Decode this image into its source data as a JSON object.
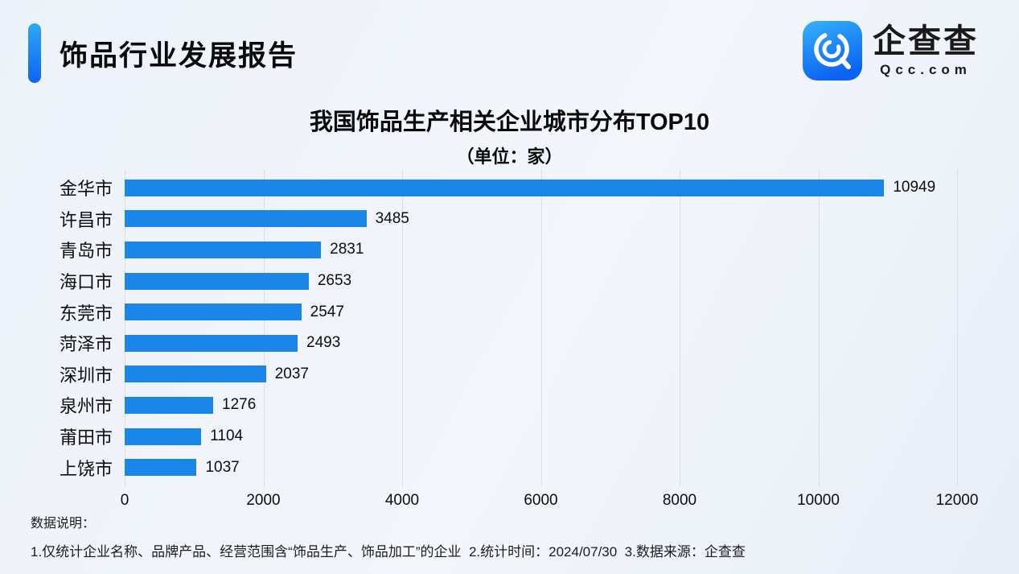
{
  "header": {
    "title": "饰品行业发展报告",
    "brand": {
      "name": "企查查",
      "domain": "Qcc.com",
      "icon": "qcc-magnifier-icon"
    }
  },
  "chart": {
    "title": "我国饰品生产相关企业城市分布TOP10",
    "subtitle": "（单位：家）"
  },
  "chart_data": {
    "type": "bar",
    "orientation": "horizontal",
    "title": "我国饰品生产相关企业城市分布TOP10",
    "subtitle": "（单位：家）",
    "unit": "家",
    "categories": [
      "金华市",
      "许昌市",
      "青岛市",
      "海口市",
      "东莞市",
      "菏泽市",
      "深圳市",
      "泉州市",
      "莆田市",
      "上饶市"
    ],
    "values": [
      10949,
      3485,
      2831,
      2653,
      2547,
      2493,
      2037,
      1276,
      1104,
      1037
    ],
    "xlabel": "",
    "ylabel": "",
    "xlim": [
      0,
      12000
    ],
    "xticks": [
      0,
      2000,
      4000,
      6000,
      8000,
      10000,
      12000
    ],
    "grid": true,
    "legend": false,
    "bar_color": "#1a86e8"
  },
  "notes": {
    "title": "数据说明：",
    "line": "1.仅统计企业名称、品牌产品、经营范围含“饰品生产、饰品加工”的企业  2.统计时间：2024/07/30  3.数据来源：企查查"
  },
  "colors": {
    "bar": "#1a86e8",
    "accent_top": "#2aa9f8",
    "accent_bottom": "#0d64f2",
    "logo_top": "#35b3f9",
    "logo_bottom": "#0c63f2",
    "background": "#edf1f9",
    "gridline": "#d9dfe9",
    "text": "#111111"
  }
}
